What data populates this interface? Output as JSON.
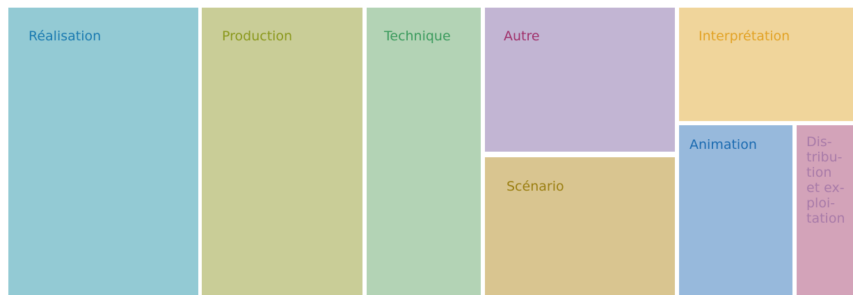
{
  "tiles": [
    {
      "label": "Réalisation"
    },
    {
      "label": "Production"
    },
    {
      "label": "Technique"
    },
    {
      "label": "Autre"
    },
    {
      "label": "Scénario"
    },
    {
      "label": "Interprétation"
    },
    {
      "label": "Animation"
    },
    {
      "lines": [
        "Dis-",
        "tribu-",
        "tion",
        "et ex-",
        "ploi-",
        "tation"
      ]
    }
  ]
}
